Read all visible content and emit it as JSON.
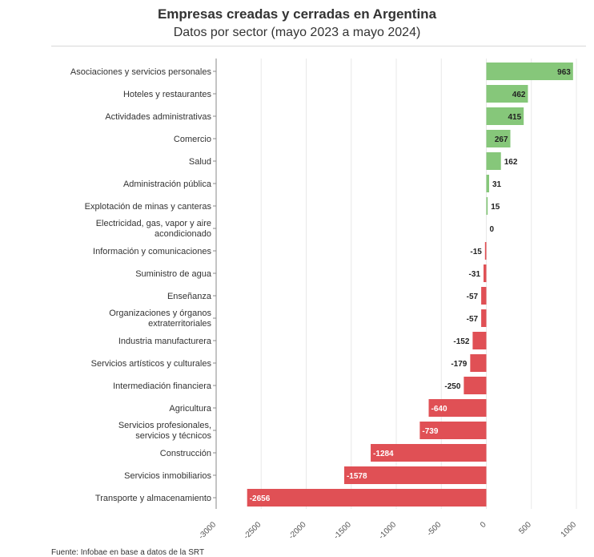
{
  "title": "Empresas creadas y cerradas en Argentina",
  "subtitle": "Datos por sector (mayo 2023 a mayo 2024)",
  "source": "Fuente: Infobae en base a datos de la SRT",
  "colors": {
    "positive": "#86c77a",
    "negative": "#e05055",
    "grid": "#e8e8e8",
    "text": "#333333"
  },
  "chart_data": {
    "type": "bar",
    "orientation": "horizontal",
    "title": "Empresas creadas y cerradas en Argentina",
    "subtitle": "Datos por sector (mayo 2023 a mayo 2024)",
    "xlim": [
      -3000,
      1000
    ],
    "xticks": [
      -3000,
      -2500,
      -2000,
      -1500,
      -1000,
      -500,
      0,
      500,
      1000
    ],
    "grid": true,
    "categories": [
      "Asociaciones y servicios personales",
      "Hoteles y restaurantes",
      "Actividades administrativas",
      "Comercio",
      "Salud",
      "Administración pública",
      "Explotación de minas y canteras",
      "Electricidad, gas, vapor y aire acondicionado",
      "Información y comunicaciones",
      "Suministro de agua",
      "Enseñanza",
      "Organizaciones y órganos extraterritoriales",
      "Industria manufacturera",
      "Servicios artísticos y culturales",
      "Intermediación financiera",
      "Agricultura",
      "Servicios profesionales, servicios y técnicos",
      "Construcción",
      "Servicios inmobiliarios",
      "Transporte y almacenamiento"
    ],
    "values": [
      963,
      462,
      415,
      267,
      162,
      31,
      15,
      0,
      -15,
      -31,
      -57,
      -57,
      -152,
      -179,
      -250,
      -640,
      -739,
      -1284,
      -1578,
      -2656
    ]
  }
}
